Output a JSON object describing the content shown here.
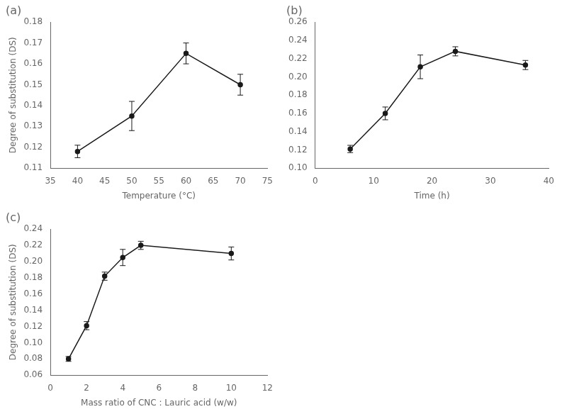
{
  "chart_data": [
    {
      "type": "line",
      "title": "(a)",
      "x": [
        40,
        50,
        60,
        70
      ],
      "values": [
        0.118,
        0.135,
        0.165,
        0.15
      ],
      "yerr": [
        0.003,
        0.007,
        0.005,
        0.005
      ],
      "xlabel": "Temperature (°C)",
      "ylabel": "Degree of substitution (DS)",
      "xlim": [
        35,
        75
      ],
      "ylim": [
        0.11,
        0.18
      ],
      "xticks": [
        35,
        40,
        45,
        50,
        55,
        60,
        65,
        70,
        75
      ],
      "yticks": [
        0.11,
        0.12,
        0.13,
        0.14,
        0.15,
        0.16,
        0.17,
        0.18
      ],
      "color": "#1a1a1a",
      "marker": "o",
      "grid": false
    },
    {
      "type": "line",
      "title": "(b)",
      "x": [
        6,
        12,
        18,
        24,
        36
      ],
      "values": [
        0.121,
        0.16,
        0.211,
        0.228,
        0.213
      ],
      "yerr": [
        0.004,
        0.007,
        0.013,
        0.005,
        0.005
      ],
      "xlabel": "Time (h)",
      "xlim": [
        0,
        40
      ],
      "ylim": [
        0.1,
        0.26
      ],
      "xticks": [
        0,
        10,
        20,
        30,
        40
      ],
      "yticks": [
        {
          "value": 0.1,
          "label": "0.10"
        },
        0.12,
        0.14,
        0.16,
        0.18,
        {
          "value": 0.2,
          "label": "0.20"
        },
        0.22,
        0.24,
        0.26
      ],
      "color": "#1a1a1a",
      "marker": "o",
      "grid": false
    },
    {
      "type": "line",
      "title": "(c)",
      "x": [
        1,
        2,
        3,
        4,
        5,
        10
      ],
      "values": [
        0.08,
        0.121,
        0.182,
        0.205,
        0.22,
        0.21
      ],
      "yerr": [
        0.003,
        0.005,
        0.005,
        0.01,
        0.005,
        0.008
      ],
      "xlabel": "Mass ratio of CNC : Lauric acid (w/w)",
      "ylabel": "Degree of substitution (DS)",
      "xlim": [
        0,
        12
      ],
      "ylim": [
        0.06,
        0.24
      ],
      "xticks": [
        0,
        2,
        4,
        6,
        8,
        10,
        12
      ],
      "yticks": [
        0.06,
        0.08,
        {
          "value": 0.1,
          "label": "0.10"
        },
        0.12,
        0.14,
        0.16,
        0.18,
        {
          "value": 0.2,
          "label": "0.20"
        },
        0.22,
        0.24
      ],
      "color": "#1a1a1a",
      "marker": "o",
      "grid": false
    }
  ]
}
